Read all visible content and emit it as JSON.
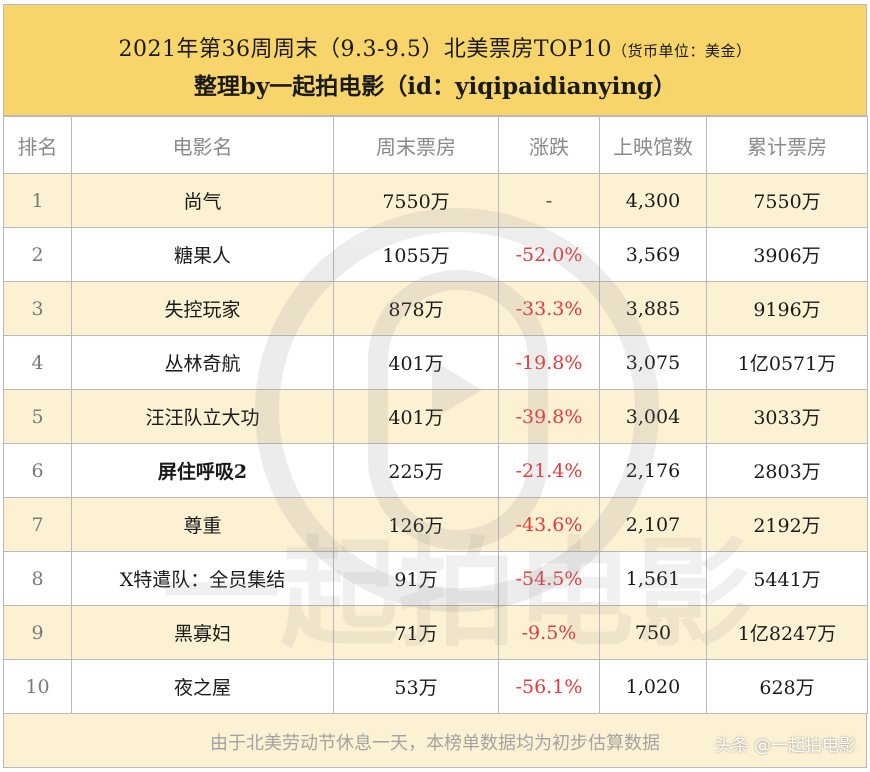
{
  "title": {
    "line1": "2021年第36周周末（9.3-9.5）北美票房TOP10",
    "unit_note": "（货币单位：美金）",
    "line2": "整理by一起拍电影（id：yiqipaidianying）"
  },
  "table": {
    "headers": [
      "排名",
      "电影名",
      "周末票房",
      "涨跌",
      "上映馆数",
      "累计票房"
    ],
    "rows": [
      {
        "rank": "1",
        "name": "尚气",
        "weekend": "7550万",
        "change": "-",
        "theaters": "4,300",
        "total": "7550万"
      },
      {
        "rank": "2",
        "name": "糖果人",
        "weekend": "1055万",
        "change": "-52.0%",
        "theaters": "3,569",
        "total": "3906万"
      },
      {
        "rank": "3",
        "name": "失控玩家",
        "weekend": "878万",
        "change": "-33.3%",
        "theaters": "3,885",
        "total": "9196万"
      },
      {
        "rank": "4",
        "name": "丛林奇航",
        "weekend": "401万",
        "change": "-19.8%",
        "theaters": "3,075",
        "total": "1亿0571万"
      },
      {
        "rank": "5",
        "name": "汪汪队立大功",
        "weekend": "401万",
        "change": "-39.8%",
        "theaters": "3,004",
        "total": "3033万"
      },
      {
        "rank": "6",
        "name": "屏住呼吸2",
        "weekend": "225万",
        "change": "-21.4%",
        "theaters": "2,176",
        "total": "2803万"
      },
      {
        "rank": "7",
        "name": "尊重",
        "weekend": "126万",
        "change": "-43.6%",
        "theaters": "2,107",
        "total": "2192万"
      },
      {
        "rank": "8",
        "name": "X特遣队：全员集结",
        "weekend": "91万",
        "change": "-54.5%",
        "theaters": "1,561",
        "total": "5441万"
      },
      {
        "rank": "9",
        "name": "黑寡妇",
        "weekend": "71万",
        "change": "-9.5%",
        "theaters": "750",
        "total": "1亿8247万"
      },
      {
        "rank": "10",
        "name": "夜之屋",
        "weekend": "53万",
        "change": "-56.1%",
        "theaters": "1,020",
        "total": "628万"
      }
    ]
  },
  "footer": {
    "note": "由于北美劳动节休息一天，本榜单数据均为初步估算数据",
    "credit": "头条 @一起拍电影"
  },
  "watermark": {
    "text": "一起拍电影",
    "color": "#d9d9d9"
  },
  "colors": {
    "title_bg": "#f8d56a",
    "row_alt_bg": "#fdf1d3",
    "negative": "#e23b3b",
    "border": "#b9b9b9"
  }
}
